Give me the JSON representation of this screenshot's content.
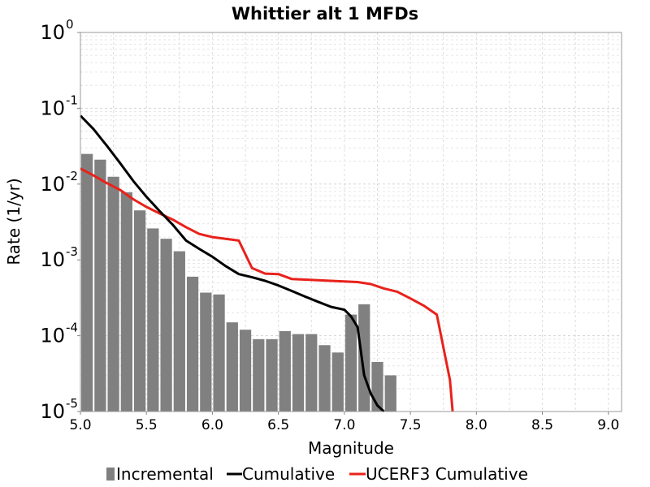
{
  "chart_data": {
    "type": "bar",
    "title": "Whittier alt 1 MFDs",
    "xlabel": "Magnitude",
    "ylabel": "Rate (1/yr)",
    "xlim": [
      5.0,
      9.1
    ],
    "ylim": [
      1e-05,
      1
    ],
    "y_scale": "log",
    "grid": true,
    "legend_position": "bottom",
    "x_ticks": [
      "5.0",
      "5.5",
      "6.0",
      "6.5",
      "7.0",
      "7.5",
      "8.0",
      "8.5",
      "9.0"
    ],
    "y_ticks": [
      {
        "base": "10",
        "exp": "0"
      },
      {
        "base": "10",
        "exp": "-1"
      },
      {
        "base": "10",
        "exp": "-2"
      },
      {
        "base": "10",
        "exp": "-3"
      },
      {
        "base": "10",
        "exp": "-4"
      },
      {
        "base": "10",
        "exp": "-5"
      }
    ],
    "series": [
      {
        "name": "Incremental",
        "type": "bar",
        "color": "#808080",
        "x": [
          5.05,
          5.15,
          5.25,
          5.35,
          5.45,
          5.55,
          5.65,
          5.75,
          5.85,
          5.95,
          6.05,
          6.15,
          6.25,
          6.35,
          6.45,
          6.55,
          6.65,
          6.75,
          6.85,
          6.95,
          7.05,
          7.15,
          7.25,
          7.35
        ],
        "values": [
          0.025,
          0.021,
          0.0125,
          0.0078,
          0.0045,
          0.0026,
          0.0019,
          0.0013,
          0.0006,
          0.00037,
          0.00035,
          0.00015,
          0.00012,
          9e-05,
          9e-05,
          0.000115,
          0.000105,
          0.000105,
          7.5e-05,
          6e-05,
          0.00019,
          0.00026,
          4.5e-05,
          3e-05
        ]
      },
      {
        "name": "Cumulative",
        "type": "line",
        "color": "#000000",
        "x": [
          5.0,
          5.1,
          5.2,
          5.3,
          5.4,
          5.5,
          5.6,
          5.7,
          5.8,
          5.9,
          6.0,
          6.1,
          6.2,
          6.3,
          6.4,
          6.5,
          6.6,
          6.7,
          6.8,
          6.9,
          7.0,
          7.05,
          7.1,
          7.15,
          7.2,
          7.25,
          7.3
        ],
        "values": [
          0.08,
          0.053,
          0.032,
          0.019,
          0.011,
          0.0068,
          0.0044,
          0.0029,
          0.0018,
          0.0014,
          0.0011,
          0.00083,
          0.00065,
          0.00059,
          0.00053,
          0.00046,
          0.00039,
          0.00033,
          0.00028,
          0.00024,
          0.00022,
          0.00018,
          0.00013,
          3e-05,
          1.72e-05,
          1.2e-05,
          1e-05
        ]
      },
      {
        "name": "UCERF3 Cumulative",
        "type": "line",
        "color": "#e8221b",
        "x": [
          5.0,
          5.1,
          5.2,
          5.3,
          5.4,
          5.5,
          5.6,
          5.7,
          5.8,
          5.9,
          6.0,
          6.1,
          6.2,
          6.3,
          6.4,
          6.5,
          6.6,
          6.7,
          6.8,
          6.9,
          7.0,
          7.1,
          7.2,
          7.3,
          7.4,
          7.5,
          7.6,
          7.7,
          7.8,
          7.82
        ],
        "values": [
          0.016,
          0.013,
          0.0103,
          0.0084,
          0.0063,
          0.005,
          0.0041,
          0.0034,
          0.0027,
          0.0022,
          0.002,
          0.0019,
          0.0018,
          0.00078,
          0.00066,
          0.00065,
          0.00056,
          0.00055,
          0.00054,
          0.00053,
          0.00052,
          0.00051,
          0.00048,
          0.00042,
          0.00038,
          0.00031,
          0.00025,
          0.00019,
          2.6e-05,
          1e-05
        ]
      }
    ]
  }
}
